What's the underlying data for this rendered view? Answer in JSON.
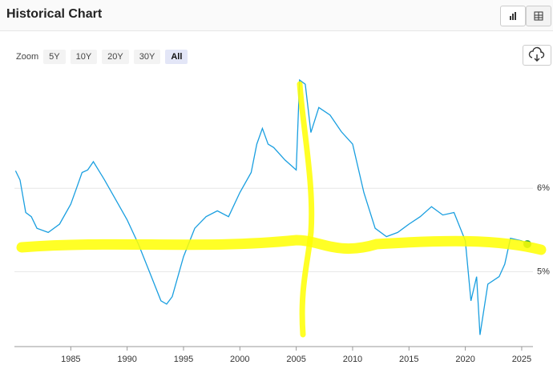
{
  "header": {
    "title": "Historical Chart",
    "zoom_label": "Zoom",
    "zoom_options": [
      "5Y",
      "10Y",
      "20Y",
      "30Y",
      "All"
    ]
  },
  "chart_data": {
    "type": "line",
    "color": "#1a9fe0",
    "x": [
      1980.1,
      1980.5,
      1981,
      1981.5,
      1982,
      1983,
      1984,
      1985,
      1985.5,
      1986,
      1986.5,
      1987,
      1988,
      1989,
      1990,
      1991,
      1992,
      1993,
      1993.5,
      1994,
      1995,
      1996,
      1997,
      1998,
      1999,
      2000,
      2001,
      2001.5,
      2002,
      2002.5,
      2003,
      2004,
      2005,
      2005.3,
      2005.8,
      2006.3,
      2007,
      2008,
      2009,
      2010,
      2011,
      2012,
      2013,
      2014,
      2015,
      2016,
      2017,
      2018,
      2019,
      2020,
      2020.5,
      2021,
      2021.3,
      2022,
      2023,
      2023.5,
      2024,
      2025,
      2025.5
    ],
    "values": [
      6.21,
      6.1,
      5.71,
      5.66,
      5.52,
      5.47,
      5.57,
      5.81,
      6.0,
      6.19,
      6.22,
      6.32,
      6.1,
      5.86,
      5.62,
      5.33,
      4.99,
      4.65,
      4.61,
      4.7,
      5.18,
      5.52,
      5.66,
      5.73,
      5.66,
      5.95,
      6.19,
      6.53,
      6.72,
      6.53,
      6.49,
      6.34,
      6.22,
      7.3,
      7.25,
      6.67,
      6.97,
      6.88,
      6.68,
      6.53,
      5.95,
      5.52,
      5.42,
      5.47,
      5.57,
      5.66,
      5.78,
      5.68,
      5.71,
      5.37,
      4.65,
      4.94,
      4.24,
      4.85,
      4.94,
      5.09,
      5.4,
      5.37,
      5.33
    ],
    "xlim": [
      1980,
      2026
    ],
    "ylim": [
      4.1,
      7.3
    ],
    "xticks": [
      1985,
      1990,
      1995,
      2000,
      2005,
      2010,
      2015,
      2020,
      2025
    ],
    "yticks": [
      {
        "value": 5,
        "label": "5%"
      },
      {
        "value": 6,
        "label": "6%"
      }
    ],
    "grid": true
  }
}
